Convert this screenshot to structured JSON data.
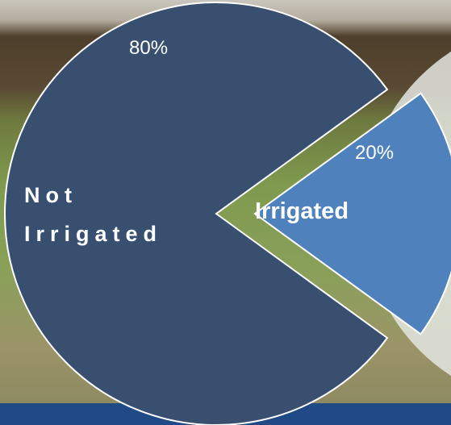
{
  "chart_data": {
    "type": "pie",
    "categories": [
      "Not Irrigated",
      "Irrigated"
    ],
    "values": [
      80,
      20
    ],
    "value_labels": [
      "80%",
      "20%"
    ],
    "colors": [
      "#384f70",
      "#4f81bd"
    ]
  }
}
